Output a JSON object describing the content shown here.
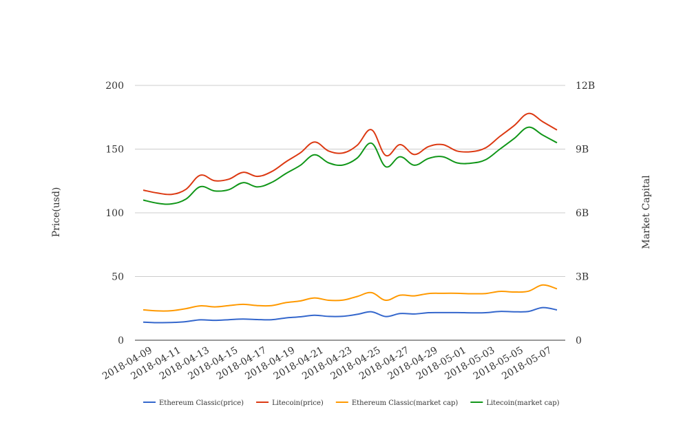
{
  "chart_data": {
    "type": "line",
    "x": [
      "2018-04-09",
      "2018-04-10",
      "2018-04-11",
      "2018-04-12",
      "2018-04-13",
      "2018-04-14",
      "2018-04-15",
      "2018-04-16",
      "2018-04-17",
      "2018-04-18",
      "2018-04-19",
      "2018-04-20",
      "2018-04-21",
      "2018-04-22",
      "2018-04-23",
      "2018-04-24",
      "2018-04-25",
      "2018-04-26",
      "2018-04-27",
      "2018-04-28",
      "2018-04-29",
      "2018-04-30",
      "2018-05-01",
      "2018-05-02",
      "2018-05-03",
      "2018-05-04",
      "2018-05-05",
      "2018-05-06",
      "2018-05-07",
      "2018-05-08"
    ],
    "x_tick_labels": [
      "2018-04-09",
      "2018-04-11",
      "2018-04-13",
      "2018-04-15",
      "2018-04-17",
      "2018-04-19",
      "2018-04-21",
      "2018-04-23",
      "2018-04-25",
      "2018-04-27",
      "2018-04-29",
      "2018-05-01",
      "2018-05-03",
      "2018-05-05",
      "2018-05-07"
    ],
    "y_left": {
      "label": "Price(usd)",
      "ylim": [
        0,
        200
      ],
      "ticks": [
        "0",
        "50",
        "100",
        "150",
        "200"
      ]
    },
    "y_right": {
      "label": "Market Capital",
      "ylim": [
        0,
        12000000000
      ],
      "ticks": [
        "0",
        "3B",
        "6B",
        "9B",
        "12B"
      ]
    },
    "grid": true,
    "legend_position": "bottom",
    "series": [
      {
        "name": "Ethereum Classic(price)",
        "axis": "left",
        "color": "#3366cc",
        "values": [
          14.2,
          13.8,
          13.9,
          14.6,
          16.0,
          15.6,
          16.1,
          16.6,
          16.2,
          16.1,
          17.5,
          18.4,
          19.6,
          18.7,
          18.8,
          20.3,
          22.3,
          18.6,
          20.9,
          20.6,
          21.6,
          21.7,
          21.7,
          21.5,
          21.6,
          22.6,
          22.3,
          22.6,
          25.6,
          23.8
        ]
      },
      {
        "name": "Litecoin(price)",
        "axis": "left",
        "color": "#dc3912",
        "values": [
          117.8,
          115.5,
          114.5,
          118.5,
          129.5,
          125.2,
          126.4,
          131.8,
          128.6,
          132.3,
          140.0,
          147.0,
          155.5,
          148.5,
          147.0,
          153.0,
          165.2,
          145.0,
          153.5,
          145.8,
          152.0,
          153.5,
          148.5,
          148.0,
          151.0,
          160.0,
          168.5,
          178.0,
          171.5,
          165.0
        ]
      },
      {
        "name": "Ethereum Classic(market cap)",
        "axis": "right",
        "color": "#ff9900",
        "values": [
          1430000000,
          1380000000,
          1390000000,
          1490000000,
          1620000000,
          1570000000,
          1630000000,
          1690000000,
          1630000000,
          1630000000,
          1770000000,
          1850000000,
          1990000000,
          1880000000,
          1890000000,
          2060000000,
          2240000000,
          1880000000,
          2120000000,
          2090000000,
          2200000000,
          2210000000,
          2210000000,
          2190000000,
          2200000000,
          2300000000,
          2270000000,
          2310000000,
          2600000000,
          2420000000
        ]
      },
      {
        "name": "Litecoin(market cap)",
        "axis": "right",
        "color": "#109618",
        "values": [
          6600000000,
          6450000000,
          6420000000,
          6650000000,
          7230000000,
          7030000000,
          7090000000,
          7420000000,
          7220000000,
          7430000000,
          7850000000,
          8230000000,
          8730000000,
          8350000000,
          8250000000,
          8580000000,
          9280000000,
          8170000000,
          8640000000,
          8240000000,
          8560000000,
          8640000000,
          8350000000,
          8340000000,
          8500000000,
          9000000000,
          9500000000,
          10030000000,
          9660000000,
          9300000000
        ]
      }
    ]
  }
}
